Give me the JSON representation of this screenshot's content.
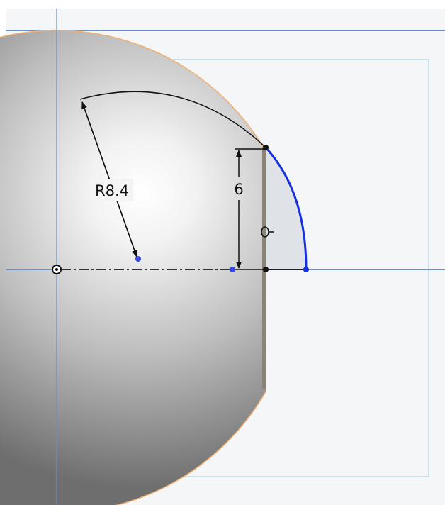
{
  "dimensions": {
    "radius": "R8.4",
    "height": "6"
  }
}
